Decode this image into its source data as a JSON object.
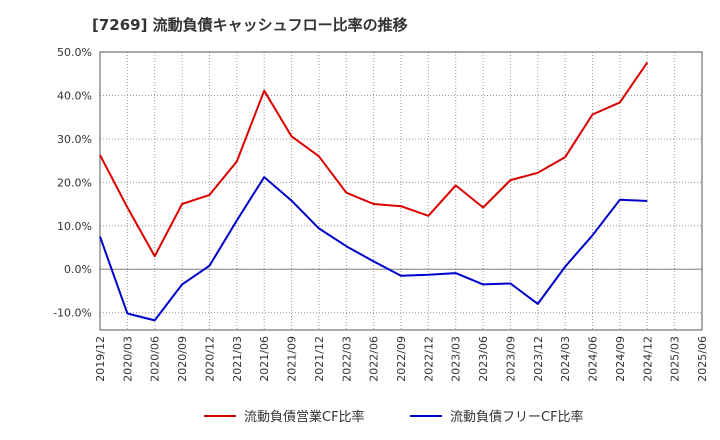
{
  "title": "[7269]  流動負債キャッシュフロー比率の推移",
  "chart_data": {
    "type": "line",
    "title": "[7269]  流動負債キャッシュフロー比率の推移",
    "x": [
      "2019/12",
      "2020/03",
      "2020/06",
      "2020/09",
      "2020/12",
      "2021/03",
      "2021/06",
      "2021/09",
      "2021/12",
      "2022/03",
      "2022/06",
      "2022/09",
      "2022/12",
      "2023/03",
      "2023/06",
      "2023/09",
      "2023/12",
      "2024/03",
      "2024/06",
      "2024/09",
      "2024/12",
      "2025/03",
      "2025/06"
    ],
    "xlabel": "",
    "ylabel": "",
    "ylim": [
      -14,
      50
    ],
    "yticks": [
      50,
      40,
      30,
      20,
      10,
      0,
      -10
    ],
    "ytick_labels": [
      "50.0%",
      "40.0%",
      "30.0%",
      "20.0%",
      "10.0%",
      "0.0%",
      "-10.0%"
    ],
    "grid": true,
    "legend_position": "bottom",
    "series": [
      {
        "name": "流動負債営業CF比率",
        "color": "#dd0000",
        "values": [
          26.3,
          14.2,
          3.0,
          15.0,
          17.1,
          24.8,
          41.1,
          30.6,
          26.0,
          17.6,
          15.0,
          14.5,
          12.3,
          19.3,
          14.2,
          20.5,
          22.2,
          25.8,
          35.6,
          38.4,
          47.6,
          null,
          null
        ]
      },
      {
        "name": "流動負債フリーCF比率",
        "color": "#0000cc",
        "values": [
          7.5,
          -10.2,
          -11.8,
          -3.5,
          0.8,
          11.2,
          21.2,
          15.8,
          9.4,
          5.3,
          1.8,
          -1.5,
          -1.3,
          -0.9,
          -3.5,
          -3.3,
          -8.0,
          0.6,
          7.8,
          16.0,
          15.7,
          null,
          null
        ]
      }
    ]
  }
}
